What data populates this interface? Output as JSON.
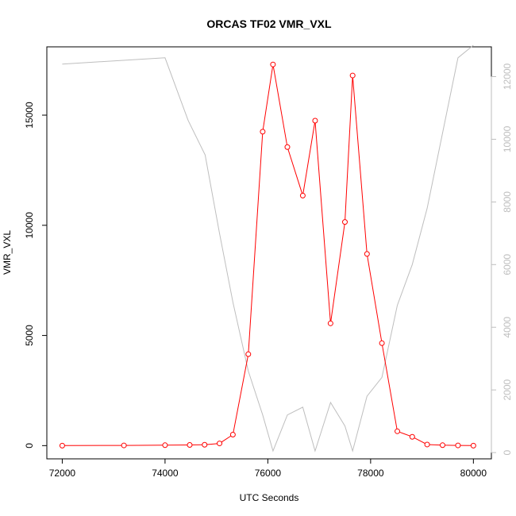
{
  "chart_data": {
    "type": "line",
    "title": "ORCAS TF02 VMR_VXL",
    "xlabel": "UTC Seconds",
    "ylabel": "VMR_VXL",
    "xlim": [
      71700,
      80350
    ],
    "ylim": [
      -600,
      18100
    ],
    "y2lim": [
      -200,
      12950
    ],
    "x_ticks": [
      72000,
      74000,
      76000,
      78000,
      80000
    ],
    "y_ticks": [
      0,
      5000,
      10000,
      15000
    ],
    "y2_ticks": [
      0,
      2000,
      4000,
      6000,
      8000,
      10000,
      12000
    ],
    "series": [
      {
        "axis": "left",
        "color": "#ff0000",
        "marker": "circle-open",
        "x": [
          72000,
          73200,
          74000,
          74480,
          74770,
          75060,
          75320,
          75620,
          75900,
          76100,
          76380,
          76680,
          76920,
          77220,
          77500,
          77650,
          77930,
          78220,
          78520,
          78810,
          79100,
          79400,
          79700,
          80000
        ],
        "values": [
          0,
          10,
          20,
          30,
          40,
          100,
          500,
          4150,
          14250,
          17300,
          13550,
          11350,
          14750,
          5550,
          10150,
          16800,
          8700,
          4650,
          650,
          400,
          50,
          20,
          10,
          0
        ]
      },
      {
        "axis": "right",
        "color": "#bebebe",
        "marker": "none",
        "x": [
          72000,
          74000,
          74450,
          74780,
          75060,
          75320,
          75620,
          75900,
          76100,
          76380,
          76680,
          76920,
          77220,
          77500,
          77650,
          77930,
          78220,
          78520,
          78810,
          79100,
          79400,
          79700,
          80000
        ],
        "values": [
          12400,
          12600,
          10600,
          9500,
          7000,
          4800,
          2600,
          1200,
          50,
          1200,
          1450,
          50,
          1600,
          850,
          50,
          1800,
          2400,
          4700,
          6000,
          7800,
          10200,
          12600,
          13000
        ]
      }
    ]
  }
}
